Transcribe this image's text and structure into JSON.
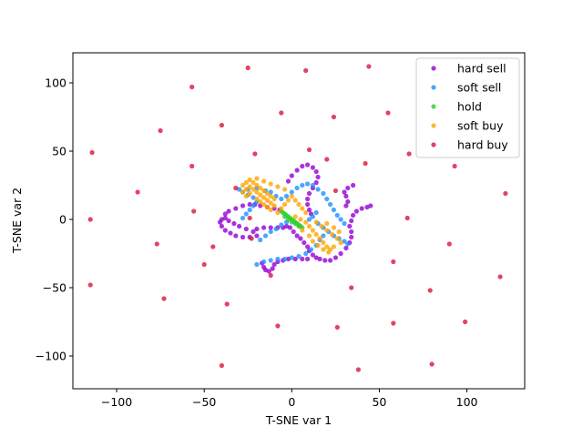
{
  "chart_data": {
    "type": "scatter",
    "title": "",
    "xlabel": "T-SNE var 1",
    "ylabel": "T-SNE var 2",
    "xlim": [
      -125,
      133
    ],
    "ylim": [
      -124,
      122
    ],
    "x_ticks": [
      -100,
      -50,
      0,
      50,
      100
    ],
    "y_ticks": [
      -100,
      -50,
      0,
      50,
      100
    ],
    "grid": false,
    "legend_position": "top-right",
    "series": [
      {
        "name": "hard sell",
        "color": "#9400d3",
        "points": [
          [
            -40,
            0
          ],
          [
            -41,
            -2
          ],
          [
            -40,
            -5
          ],
          [
            -38,
            -8
          ],
          [
            -35,
            -10
          ],
          [
            -32,
            -12
          ],
          [
            -28,
            -13
          ],
          [
            -24,
            -13
          ],
          [
            -20,
            -12
          ],
          [
            -22,
            -9
          ],
          [
            -26,
            -7
          ],
          [
            -30,
            -5
          ],
          [
            -33,
            -3
          ],
          [
            -36,
            -1
          ],
          [
            -38,
            1
          ],
          [
            -38,
            4
          ],
          [
            -36,
            6
          ],
          [
            -32,
            8
          ],
          [
            -28,
            10
          ],
          [
            -24,
            11
          ],
          [
            -21,
            11
          ],
          [
            -18,
            10
          ],
          [
            -14,
            9
          ],
          [
            -10,
            8
          ],
          [
            -7,
            7
          ],
          [
            -20,
            -7
          ],
          [
            -16,
            -6
          ],
          [
            -12,
            -6
          ],
          [
            -8,
            -6
          ],
          [
            -5,
            -6
          ],
          [
            -3,
            -5
          ],
          [
            -2,
            28
          ],
          [
            0,
            32
          ],
          [
            3,
            36
          ],
          [
            6,
            39
          ],
          [
            9,
            40
          ],
          [
            12,
            38
          ],
          [
            14,
            35
          ],
          [
            15,
            31
          ],
          [
            14,
            27
          ],
          [
            12,
            23
          ],
          [
            10,
            19
          ],
          [
            9,
            15
          ],
          [
            9,
            11
          ],
          [
            10,
            7
          ],
          [
            11,
            4
          ],
          [
            -1,
            -6
          ],
          [
            1,
            -9
          ],
          [
            3,
            -12
          ],
          [
            5,
            -14
          ],
          [
            7,
            -17
          ],
          [
            9,
            -20
          ],
          [
            10,
            -23
          ],
          [
            12,
            -26
          ],
          [
            14,
            -28
          ],
          [
            16,
            -29
          ],
          [
            19,
            -30
          ],
          [
            22,
            -30
          ],
          [
            25,
            -28
          ],
          [
            28,
            -25
          ],
          [
            31,
            -21
          ],
          [
            33,
            -17
          ],
          [
            34,
            -13
          ],
          [
            34,
            -9
          ],
          [
            33,
            -5
          ],
          [
            34,
            -1
          ],
          [
            35,
            3
          ],
          [
            37,
            6
          ],
          [
            40,
            8
          ],
          [
            43,
            9
          ],
          [
            45,
            10
          ],
          [
            30,
            20
          ],
          [
            31,
            17
          ],
          [
            32,
            13
          ],
          [
            31,
            10
          ],
          [
            32,
            23
          ],
          [
            35,
            25
          ],
          [
            -17,
            -32
          ],
          [
            -16,
            -35
          ],
          [
            -15,
            -37
          ],
          [
            -13,
            -38
          ],
          [
            -11,
            -36
          ],
          [
            -10,
            -33
          ],
          [
            -8,
            -31
          ],
          [
            -5,
            -30
          ],
          [
            -2,
            -29
          ],
          [
            2,
            -29
          ],
          [
            6,
            -29
          ],
          [
            9,
            -29
          ]
        ]
      },
      {
        "name": "soft sell",
        "color": "#1e90ff",
        "points": [
          [
            -30,
            22
          ],
          [
            -28,
            20
          ],
          [
            -25,
            18
          ],
          [
            -22,
            16
          ],
          [
            -20,
            13
          ],
          [
            -22,
            10
          ],
          [
            -24,
            7
          ],
          [
            -26,
            4
          ],
          [
            -28,
            1
          ],
          [
            -12,
            20
          ],
          [
            -9,
            17
          ],
          [
            -6,
            15
          ],
          [
            -3,
            17
          ],
          [
            0,
            20
          ],
          [
            3,
            23
          ],
          [
            6,
            25
          ],
          [
            9,
            26
          ],
          [
            12,
            25
          ],
          [
            15,
            22
          ],
          [
            18,
            19
          ],
          [
            20,
            15
          ],
          [
            22,
            11
          ],
          [
            24,
            7
          ],
          [
            26,
            3
          ],
          [
            28,
            0
          ],
          [
            30,
            -3
          ],
          [
            -18,
            -15
          ],
          [
            -15,
            -12
          ],
          [
            -12,
            -9
          ],
          [
            -9,
            -7
          ],
          [
            -6,
            -4
          ],
          [
            -3,
            -2
          ],
          [
            15,
            -3
          ],
          [
            18,
            -6
          ],
          [
            21,
            -9
          ],
          [
            24,
            -12
          ],
          [
            27,
            -14
          ],
          [
            30,
            -16
          ],
          [
            32,
            -18
          ],
          [
            -20,
            -33
          ],
          [
            -16,
            -31
          ],
          [
            -12,
            -30
          ],
          [
            -8,
            -29
          ],
          [
            -4,
            -29
          ],
          [
            0,
            -28
          ],
          [
            4,
            -27
          ],
          [
            8,
            -25
          ],
          [
            11,
            -22
          ],
          [
            14,
            -19
          ],
          [
            16,
            -15
          ],
          [
            18,
            -12
          ],
          [
            -25,
            22
          ],
          [
            -20,
            23
          ],
          [
            -15,
            21
          ],
          [
            10,
            0
          ],
          [
            12,
            2
          ],
          [
            14,
            5
          ]
        ]
      },
      {
        "name": "hold",
        "color": "#32cd32",
        "points": [
          [
            -6,
            6
          ],
          [
            -5,
            5
          ],
          [
            -4,
            4
          ],
          [
            -3,
            3
          ],
          [
            -2,
            2
          ],
          [
            -1,
            1
          ],
          [
            0,
            0
          ],
          [
            1,
            -1
          ],
          [
            2,
            -2
          ],
          [
            3,
            -3
          ],
          [
            4,
            -4
          ],
          [
            5,
            -5
          ],
          [
            6,
            -6
          ],
          [
            -4,
            2
          ],
          [
            -2,
            0
          ],
          [
            0,
            -2
          ],
          [
            2,
            -3
          ],
          [
            4,
            -5
          ]
        ]
      },
      {
        "name": "soft buy",
        "color": "#ffa500",
        "points": [
          [
            -28,
            25
          ],
          [
            -26,
            27
          ],
          [
            -24,
            29
          ],
          [
            -22,
            27
          ],
          [
            -20,
            25
          ],
          [
            -18,
            23
          ],
          [
            -16,
            21
          ],
          [
            -14,
            19
          ],
          [
            -12,
            17
          ],
          [
            -10,
            15
          ],
          [
            -28,
            20
          ],
          [
            -26,
            22
          ],
          [
            -24,
            24
          ],
          [
            -22,
            22
          ],
          [
            -20,
            20
          ],
          [
            -18,
            18
          ],
          [
            -16,
            16
          ],
          [
            -14,
            14
          ],
          [
            -12,
            12
          ],
          [
            -10,
            10
          ],
          [
            -26,
            17
          ],
          [
            -24,
            19
          ],
          [
            -20,
            15
          ],
          [
            -18,
            13
          ],
          [
            -16,
            11
          ],
          [
            -14,
            9
          ],
          [
            -12,
            7
          ],
          [
            -8,
            5
          ],
          [
            -6,
            8
          ],
          [
            -4,
            11
          ],
          [
            -2,
            14
          ],
          [
            0,
            17
          ],
          [
            2,
            14
          ],
          [
            4,
            11
          ],
          [
            6,
            8
          ],
          [
            8,
            5
          ],
          [
            -20,
            30
          ],
          [
            -16,
            28
          ],
          [
            -12,
            26
          ],
          [
            -8,
            24
          ],
          [
            -4,
            22
          ],
          [
            2,
            2
          ],
          [
            5,
            0
          ],
          [
            8,
            -2
          ],
          [
            10,
            -5
          ],
          [
            12,
            -8
          ],
          [
            14,
            -11
          ],
          [
            16,
            -14
          ],
          [
            18,
            -17
          ],
          [
            20,
            -20
          ],
          [
            22,
            -22
          ],
          [
            14,
            -2
          ],
          [
            17,
            -5
          ],
          [
            20,
            -8
          ],
          [
            23,
            -11
          ],
          [
            26,
            -14
          ],
          [
            28,
            -17
          ],
          [
            12,
            -16
          ],
          [
            15,
            -19
          ],
          [
            18,
            -22
          ],
          [
            21,
            -24
          ],
          [
            24,
            -20
          ],
          [
            27,
            -9
          ],
          [
            24,
            -6
          ],
          [
            20,
            -3
          ],
          [
            10,
            -12
          ],
          [
            6,
            -8
          ]
        ]
      },
      {
        "name": "hard buy",
        "color": "#dc143c",
        "points": [
          [
            -25,
            111
          ],
          [
            8,
            109
          ],
          [
            44,
            112
          ],
          [
            -57,
            97
          ],
          [
            -6,
            78
          ],
          [
            24,
            75
          ],
          [
            55,
            78
          ],
          [
            -75,
            65
          ],
          [
            -40,
            69
          ],
          [
            -114,
            49
          ],
          [
            -21,
            48
          ],
          [
            10,
            51
          ],
          [
            67,
            48
          ],
          [
            -57,
            39
          ],
          [
            42,
            41
          ],
          [
            93,
            39
          ],
          [
            -88,
            20
          ],
          [
            -32,
            23
          ],
          [
            25,
            21
          ],
          [
            -115,
            0
          ],
          [
            -56,
            6
          ],
          [
            66,
            1
          ],
          [
            122,
            19
          ],
          [
            -77,
            -18
          ],
          [
            -23,
            -14
          ],
          [
            90,
            -18
          ],
          [
            -50,
            -33
          ],
          [
            58,
            -31
          ],
          [
            -115,
            -48
          ],
          [
            -12,
            -41
          ],
          [
            34,
            -50
          ],
          [
            119,
            -42
          ],
          [
            -73,
            -58
          ],
          [
            79,
            -52
          ],
          [
            -37,
            -62
          ],
          [
            -8,
            -78
          ],
          [
            26,
            -79
          ],
          [
            58,
            -76
          ],
          [
            99,
            -75
          ],
          [
            -40,
            -107
          ],
          [
            38,
            -110
          ],
          [
            80,
            -106
          ],
          [
            -24,
            1
          ],
          [
            -45,
            -20
          ],
          [
            20,
            44
          ]
        ]
      }
    ]
  },
  "legend": {
    "items": [
      {
        "label": "hard sell",
        "color": "#9400d3"
      },
      {
        "label": "soft sell",
        "color": "#1e90ff"
      },
      {
        "label": "hold",
        "color": "#32cd32"
      },
      {
        "label": "soft buy",
        "color": "#ffa500"
      },
      {
        "label": "hard buy",
        "color": "#dc143c"
      }
    ]
  },
  "axes": {
    "x_tick_labels": [
      "−100",
      "−50",
      "0",
      "50",
      "100"
    ],
    "y_tick_labels": [
      "−100",
      "−50",
      "0",
      "50",
      "100"
    ]
  }
}
